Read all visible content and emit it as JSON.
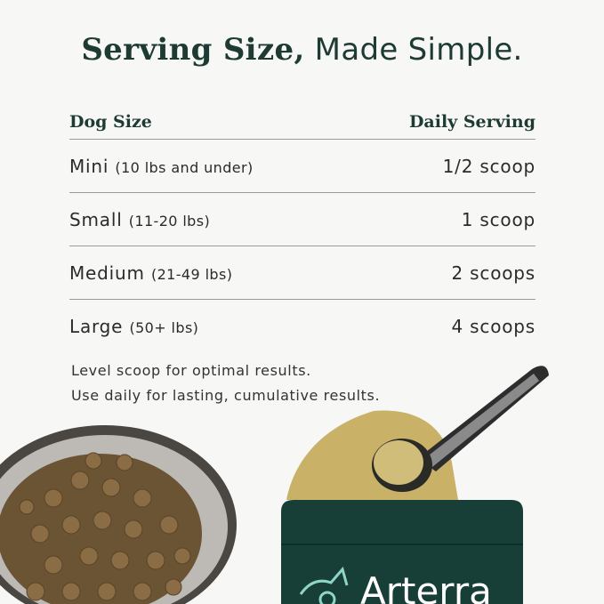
{
  "title": {
    "bold": "Serving Size,",
    "regular": " Made Simple."
  },
  "table": {
    "headers": [
      "Dog Size",
      "Daily Serving"
    ],
    "rows": [
      {
        "size": "Mini",
        "range": "(10 lbs and under)",
        "serving": "1/2 scoop"
      },
      {
        "size": "Small",
        "range": "(11-20 lbs)",
        "serving": "1 scoop"
      },
      {
        "size": "Medium",
        "range": "(21-49 lbs)",
        "serving": "2 scoops"
      },
      {
        "size": "Large",
        "range": "(50+ lbs)",
        "serving": "4 scoops"
      }
    ]
  },
  "notes": [
    "Level scoop for optimal results.",
    "Use daily for lasting, cumulative results."
  ],
  "product": {
    "brand": "Arterra"
  },
  "colors": {
    "title": "#1e3b33",
    "pouch": "#173f38",
    "powder": "#c9b267",
    "logo": "#8fd6c8"
  }
}
